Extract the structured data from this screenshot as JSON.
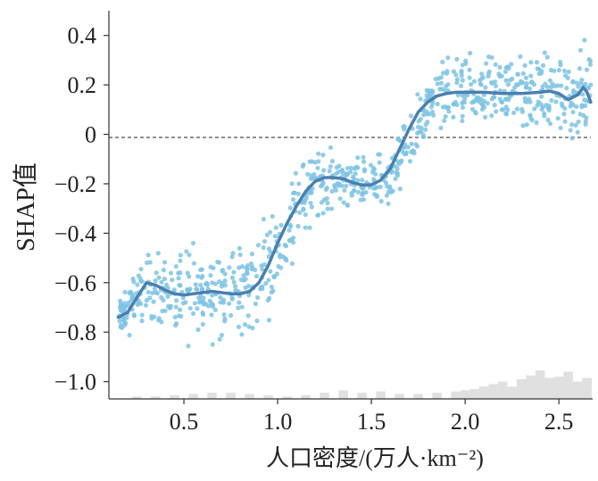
{
  "chart_data": {
    "type": "scatter",
    "title": "",
    "xlabel": "人口密度/(万人·km⁻²)",
    "ylabel": "SHAP值",
    "xlim": [
      0.1,
      2.68
    ],
    "ylim": [
      -1.07,
      0.5
    ],
    "x_ticks": [
      "0.5",
      "1.0",
      "1.5",
      "2.0",
      "2.5"
    ],
    "y_ticks": [
      "0.4",
      "0.2",
      "0",
      "−0.2",
      "−0.4",
      "−0.6",
      "−0.8",
      "−1.0"
    ],
    "reference_line": {
      "y": 0,
      "style": "dashed"
    },
    "colors": {
      "points": "#7ec3e3",
      "trend": "#4a7fb0",
      "histogram": "#e0e0e0",
      "axis": "#333333"
    },
    "points_envelope": [
      {
        "x": 0.15,
        "center": -0.74,
        "spread": 0.05
      },
      {
        "x": 0.2,
        "center": -0.72,
        "spread": 0.08
      },
      {
        "x": 0.3,
        "center": -0.6,
        "spread": 0.12
      },
      {
        "x": 0.4,
        "center": -0.63,
        "spread": 0.12
      },
      {
        "x": 0.5,
        "center": -0.65,
        "spread": 0.16
      },
      {
        "x": 0.6,
        "center": -0.64,
        "spread": 0.15
      },
      {
        "x": 0.7,
        "center": -0.63,
        "spread": 0.16
      },
      {
        "x": 0.8,
        "center": -0.64,
        "spread": 0.17
      },
      {
        "x": 0.9,
        "center": -0.6,
        "spread": 0.18
      },
      {
        "x": 1.0,
        "center": -0.45,
        "spread": 0.15
      },
      {
        "x": 1.1,
        "center": -0.3,
        "spread": 0.14
      },
      {
        "x": 1.2,
        "center": -0.2,
        "spread": 0.11
      },
      {
        "x": 1.3,
        "center": -0.18,
        "spread": 0.1
      },
      {
        "x": 1.4,
        "center": -0.19,
        "spread": 0.08
      },
      {
        "x": 1.5,
        "center": -0.2,
        "spread": 0.08
      },
      {
        "x": 1.6,
        "center": -0.16,
        "spread": 0.1
      },
      {
        "x": 1.7,
        "center": -0.05,
        "spread": 0.1
      },
      {
        "x": 1.8,
        "center": 0.1,
        "spread": 0.1
      },
      {
        "x": 1.9,
        "center": 0.16,
        "spread": 0.12
      },
      {
        "x": 2.0,
        "center": 0.17,
        "spread": 0.13
      },
      {
        "x": 2.1,
        "center": 0.17,
        "spread": 0.13
      },
      {
        "x": 2.2,
        "center": 0.17,
        "spread": 0.13
      },
      {
        "x": 2.3,
        "center": 0.17,
        "spread": 0.13
      },
      {
        "x": 2.4,
        "center": 0.17,
        "spread": 0.14
      },
      {
        "x": 2.5,
        "center": 0.15,
        "spread": 0.14
      },
      {
        "x": 2.6,
        "center": 0.15,
        "spread": 0.15
      },
      {
        "x": 2.67,
        "center": 0.18,
        "spread": 0.15
      }
    ],
    "trend_line": {
      "x": [
        0.15,
        0.2,
        0.25,
        0.3,
        0.35,
        0.4,
        0.45,
        0.5,
        0.55,
        0.6,
        0.65,
        0.7,
        0.75,
        0.8,
        0.85,
        0.9,
        0.95,
        1.0,
        1.05,
        1.1,
        1.15,
        1.2,
        1.25,
        1.3,
        1.35,
        1.4,
        1.45,
        1.5,
        1.55,
        1.6,
        1.65,
        1.7,
        1.75,
        1.8,
        1.85,
        1.9,
        1.95,
        2.0,
        2.1,
        2.2,
        2.3,
        2.4,
        2.45,
        2.5,
        2.55,
        2.6,
        2.63,
        2.65,
        2.67
      ],
      "y": [
        -0.74,
        -0.72,
        -0.66,
        -0.6,
        -0.61,
        -0.63,
        -0.645,
        -0.65,
        -0.645,
        -0.64,
        -0.635,
        -0.64,
        -0.645,
        -0.645,
        -0.635,
        -0.6,
        -0.53,
        -0.44,
        -0.36,
        -0.29,
        -0.23,
        -0.19,
        -0.175,
        -0.175,
        -0.18,
        -0.195,
        -0.205,
        -0.205,
        -0.185,
        -0.14,
        -0.06,
        0.02,
        0.09,
        0.13,
        0.155,
        0.165,
        0.17,
        0.17,
        0.17,
        0.165,
        0.165,
        0.17,
        0.175,
        0.165,
        0.14,
        0.16,
        0.19,
        0.17,
        0.13
      ]
    },
    "histogram": {
      "x": [
        0.25,
        0.35,
        0.45,
        0.55,
        0.65,
        0.75,
        0.85,
        0.95,
        1.05,
        1.15,
        1.25,
        1.35,
        1.45,
        1.55,
        1.65,
        1.75,
        1.85,
        1.95,
        2.0,
        2.05,
        2.1,
        2.15,
        2.2,
        2.25,
        2.3,
        2.35,
        2.4,
        2.45,
        2.5,
        2.55,
        2.6,
        2.65
      ],
      "y": [
        -1.06,
        -1.06,
        -1.055,
        -1.05,
        -1.045,
        -1.045,
        -1.05,
        -1.055,
        -1.06,
        -1.055,
        -1.045,
        -1.035,
        -1.045,
        -1.04,
        -1.05,
        -1.05,
        -1.045,
        -1.04,
        -1.035,
        -1.03,
        -1.02,
        -1.01,
        -1.0,
        -1.02,
        -0.99,
        -0.975,
        -0.955,
        -0.985,
        -0.98,
        -0.96,
        -1.0,
        -0.985
      ]
    }
  }
}
